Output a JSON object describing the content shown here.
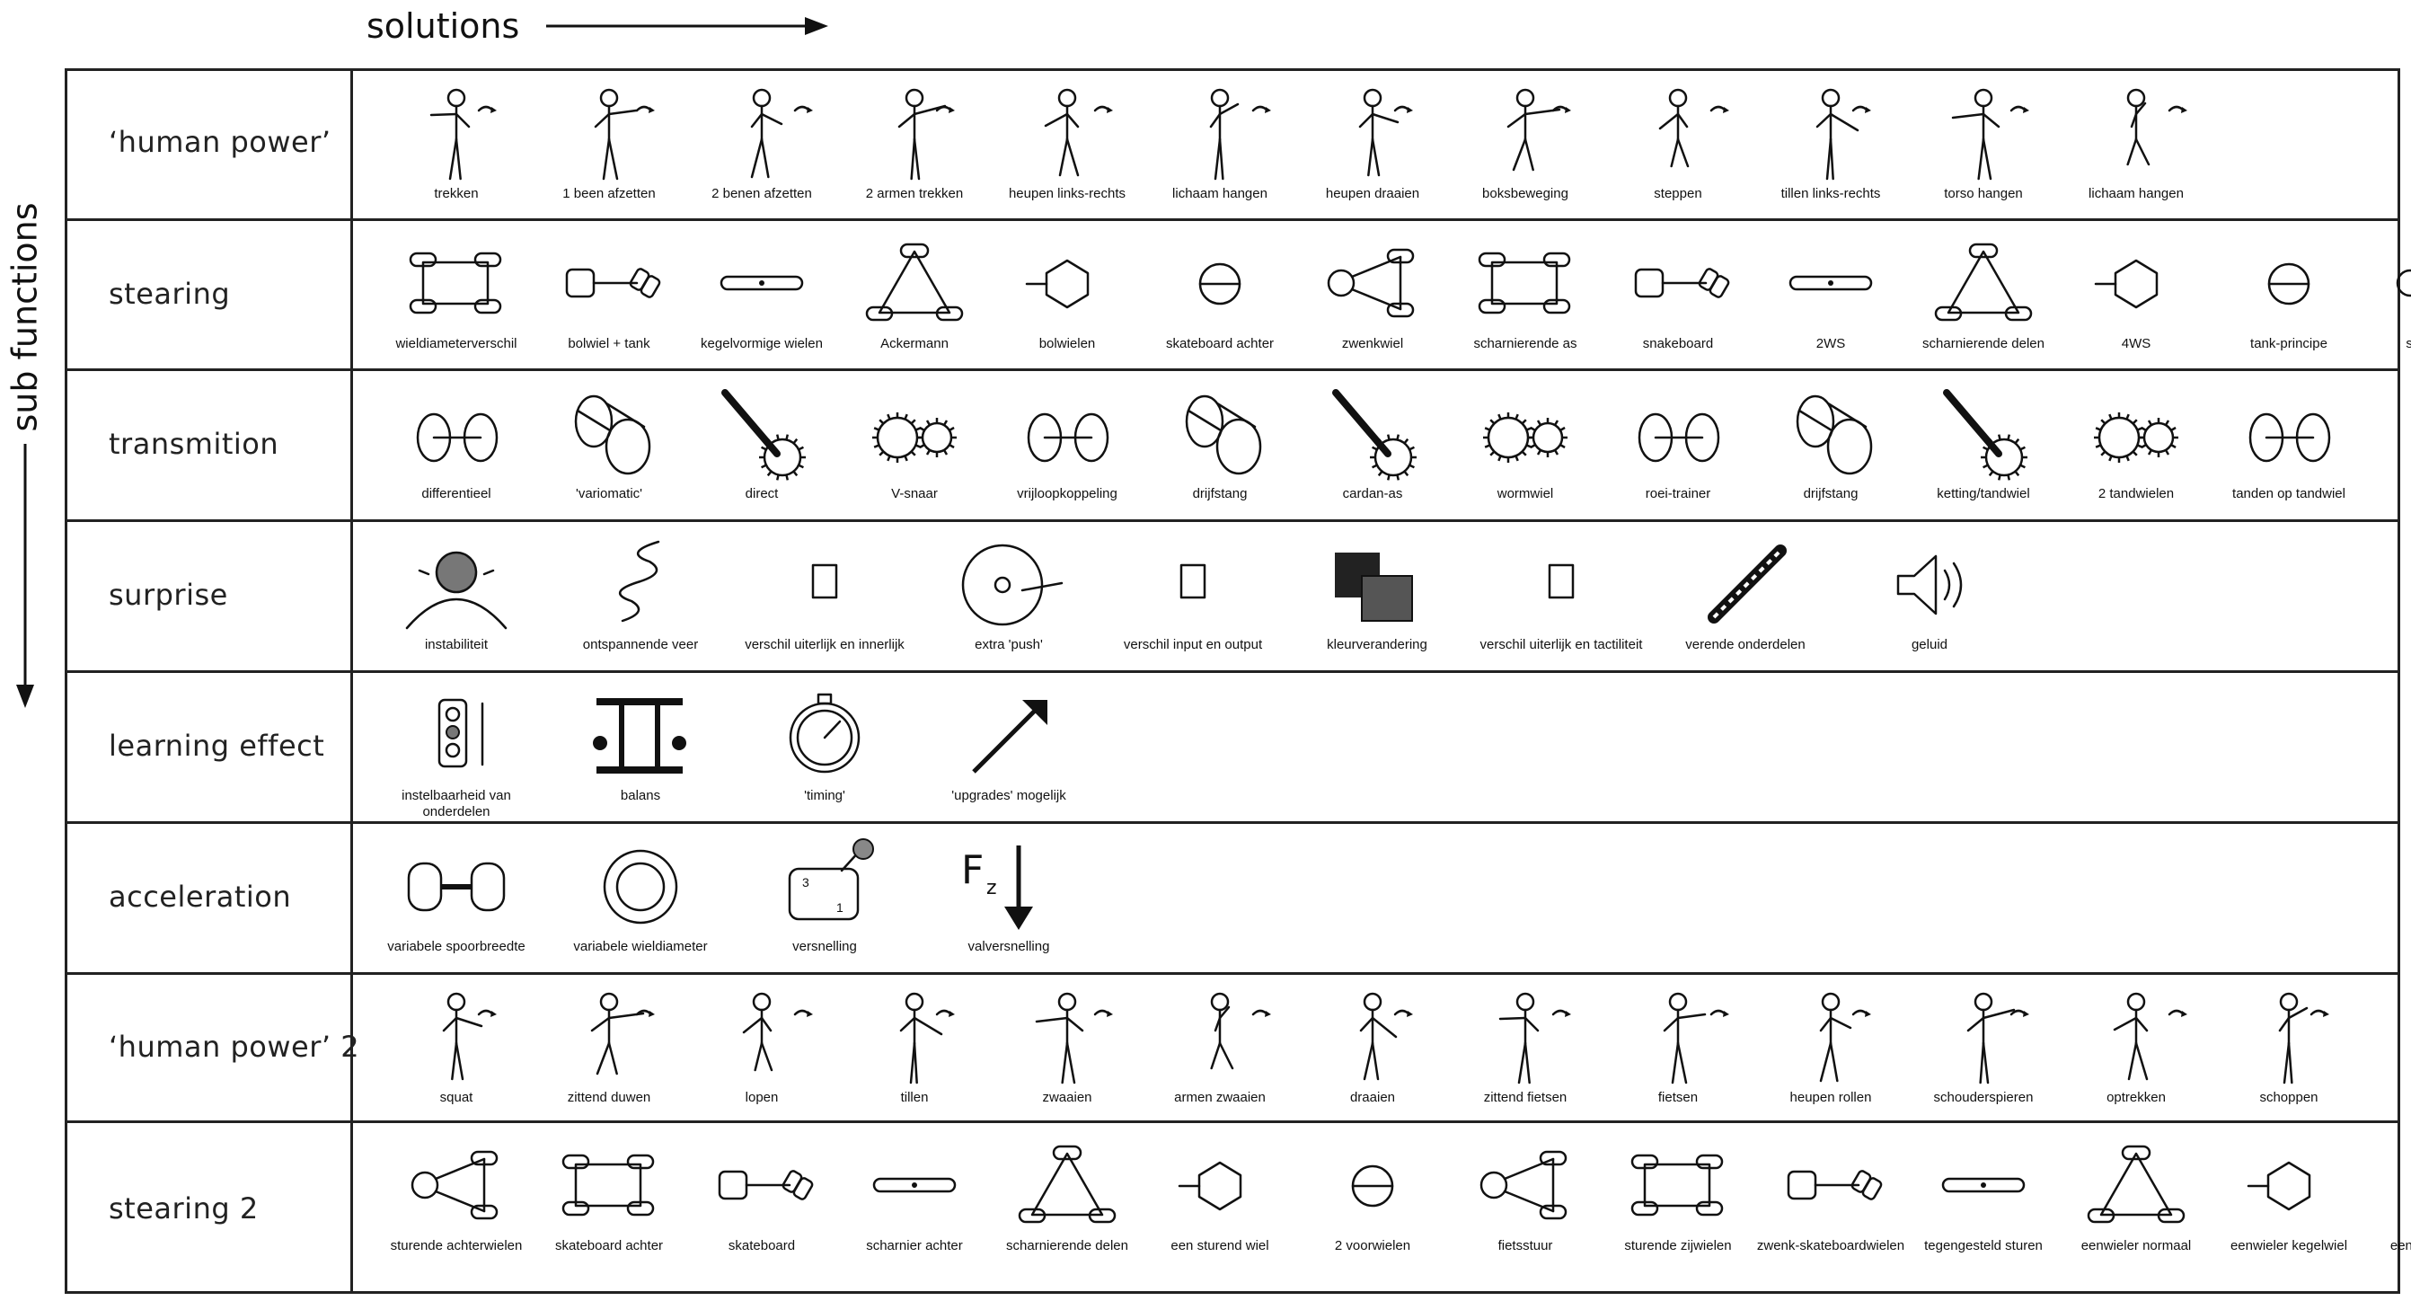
{
  "axes": {
    "solutions": "solutions",
    "sub_functions": "sub functions"
  },
  "rows": [
    {
      "label": "‘human power’",
      "icon_kind": "figure",
      "items": [
        "trekken",
        "1 been afzetten",
        "2 benen afzetten",
        "2 armen trekken",
        "heupen links-rechts",
        "lichaam hangen",
        "heupen draaien",
        "boksbeweging",
        "steppen",
        "tillen links-rechts",
        "torso hangen",
        "lichaam hangen"
      ]
    },
    {
      "label": "stearing",
      "icon_kind": "steer",
      "items": [
        "wieldiameterverschil",
        "bolwiel + tank",
        "kegelvormige wielen",
        "Ackermann",
        "bolwielen",
        "skateboard achter",
        "zwenkwiel",
        "scharnierende as",
        "snakeboard",
        "2WS",
        "scharnierende delen",
        "4WS",
        "tank-principe",
        "sturing links"
      ]
    },
    {
      "label": "transmition",
      "icon_kind": "gear",
      "items": [
        "differentieel",
        "'variomatic'",
        "direct",
        "V-snaar",
        "vrijloopkoppeling",
        "drijfstang",
        "cardan-as",
        "wormwiel",
        "roei-trainer",
        "drijfstang",
        "ketting/tandwiel",
        "2 tandwielen",
        "tanden op tandwiel"
      ]
    },
    {
      "label": "surprise",
      "icon_kind": "misc",
      "items": [
        "instabiliteit",
        "ontspannende veer",
        "verschil uiterlijk en innerlijk",
        "extra 'push'",
        "verschil input en output",
        "kleurverandering",
        "verschil uiterlijk en tactiliteit",
        "verende onderdelen",
        "geluid"
      ]
    },
    {
      "label": "learning effect",
      "icon_kind": "misc",
      "items": [
        "instelbaarheid van onderdelen",
        "balans",
        "'timing'",
        "'upgrades' mogelijk"
      ]
    },
    {
      "label": "acceleration",
      "icon_kind": "misc",
      "items": [
        "variabele spoorbreedte",
        "variabele wieldiameter",
        "versnelling",
        "valversnelling"
      ]
    },
    {
      "label": "‘human power’ 2",
      "icon_kind": "figure",
      "items": [
        "squat",
        "zittend duwen",
        "lopen",
        "tillen",
        "zwaaien",
        "armen zwaaien",
        "draaien",
        "zittend fietsen",
        "fietsen",
        "heupen rollen",
        "schouderspieren",
        "optrekken",
        "schoppen"
      ]
    },
    {
      "label": "stearing 2",
      "icon_kind": "steer",
      "items": [
        "sturende achterwielen",
        "skateboard achter",
        "skateboard",
        "scharnier achter",
        "scharnierende delen",
        "een sturend wiel",
        "2 voorwielen",
        "fietsstuur",
        "sturende zijwielen",
        "zwenk-skateboardwielen",
        "tegengesteld sturen",
        "eenwieler normaal",
        "eenwieler kegelwiel",
        "eenwieler bolwiel"
      ]
    }
  ],
  "special_icons": {
    "valversnelling_symbol": "F",
    "valversnelling_subscript": "z",
    "versnelling_gear_high": "3",
    "versnelling_gear_low": "1"
  }
}
